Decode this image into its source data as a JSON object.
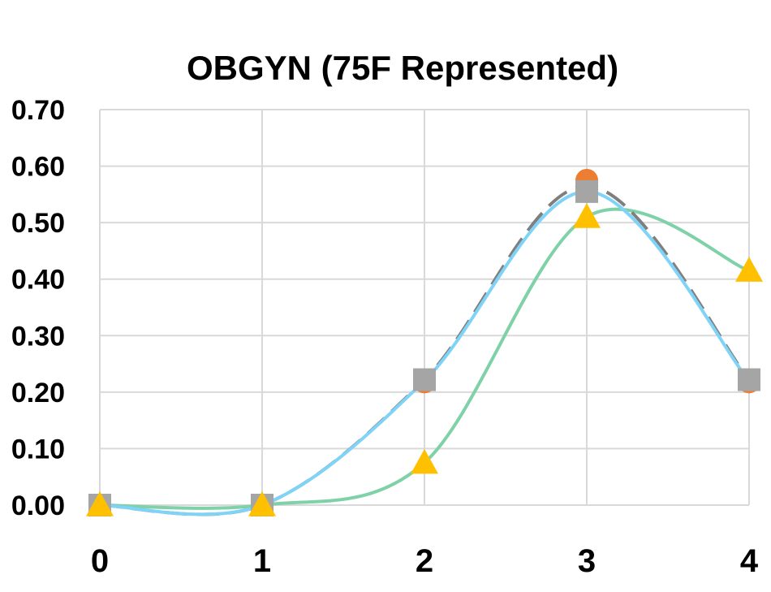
{
  "chart_data": {
    "type": "line",
    "title": "OBGYN (75F Represented)",
    "xlabel": "",
    "ylabel": "",
    "x": [
      0,
      1,
      2,
      3,
      4
    ],
    "xlim": [
      0,
      4
    ],
    "ylim": [
      0,
      0.7
    ],
    "y_ticks": [
      "0.00",
      "0.10",
      "0.20",
      "0.30",
      "0.40",
      "0.50",
      "0.60",
      "0.70"
    ],
    "x_ticks": [
      "0",
      "1",
      "2",
      "3",
      "4"
    ],
    "grid": true,
    "legend": "none",
    "smooth": true,
    "series": [
      {
        "color": "#7fd1a8",
        "values": [
          0.0,
          0.0,
          0.075,
          0.51,
          0.415
        ],
        "line": "solid",
        "marker": "none"
      },
      {
        "color": "#ed7d31",
        "values": [
          0.0,
          0.0,
          0.218,
          0.575,
          0.218
        ],
        "line": "none",
        "marker": "circle"
      },
      {
        "color": "#7f7f7f",
        "values": [
          0.0,
          0.0,
          0.222,
          0.565,
          0.222
        ],
        "line": "dashed",
        "marker": "none"
      },
      {
        "color": "#7fd3f7",
        "values": [
          0.0,
          0.0,
          0.22,
          0.555,
          0.22
        ],
        "line": "solid",
        "marker": "none"
      },
      {
        "color": "#a5a5a5",
        "values": [
          0.0,
          0.0,
          0.222,
          0.555,
          0.222
        ],
        "line": "none",
        "marker": "square"
      },
      {
        "color": "#ffc000",
        "values": [
          0.0,
          0.0,
          0.075,
          0.51,
          0.415
        ],
        "line": "none",
        "marker": "triangle"
      }
    ]
  }
}
